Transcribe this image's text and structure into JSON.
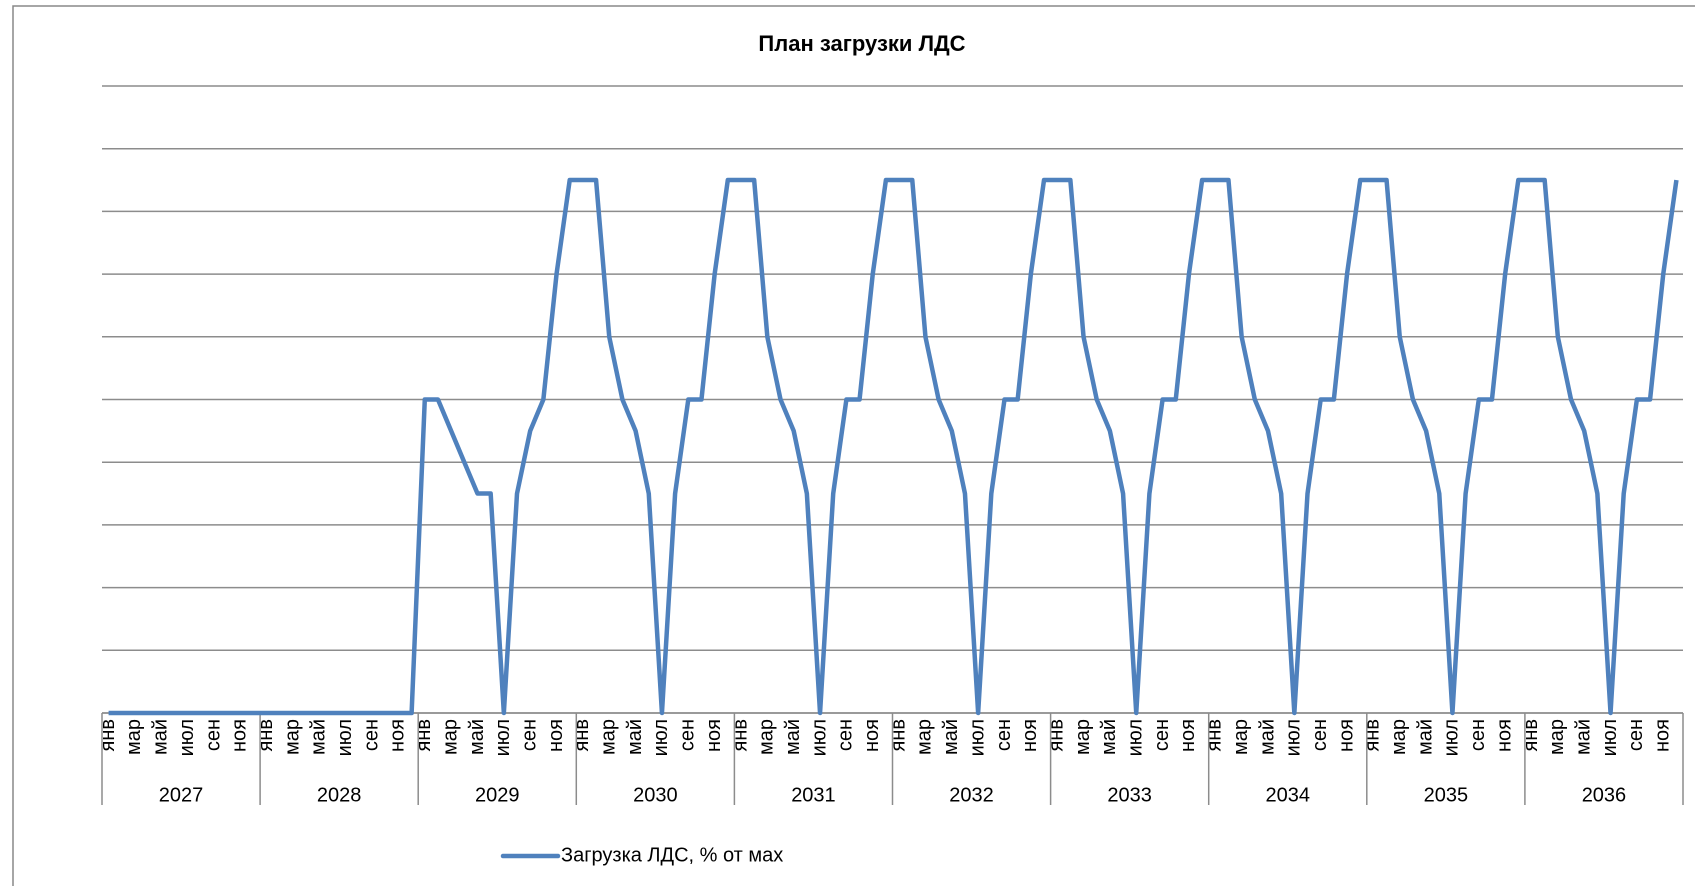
{
  "chart_data": {
    "type": "line",
    "title": "План загрузки ЛДС",
    "categories": [
      "янв",
      null,
      "мар",
      null,
      "май",
      null,
      "июл",
      null,
      "сен",
      null,
      "ноя",
      null,
      "янв",
      null,
      "мар",
      null,
      "май",
      null,
      "июл",
      null,
      "сен",
      null,
      "ноя",
      null,
      "янв",
      null,
      "мар",
      null,
      "май",
      null,
      "июл",
      null,
      "сен",
      null,
      "ноя",
      null,
      "янв",
      null,
      "мар",
      null,
      "май",
      null,
      "июл",
      null,
      "сен",
      null,
      "ноя",
      null,
      "янв",
      null,
      "мар",
      null,
      "май",
      null,
      "июл",
      null,
      "сен",
      null,
      "ноя",
      null,
      "янв",
      null,
      "мар",
      null,
      "май",
      null,
      "июл",
      null,
      "сен",
      null,
      "ноя",
      null,
      "янв",
      null,
      "мар",
      null,
      "май",
      null,
      "июл",
      null,
      "сен",
      null,
      "ноя",
      null,
      "янв",
      null,
      "мар",
      null,
      "май",
      null,
      "июл",
      null,
      "сен",
      null,
      "ноя",
      null,
      "янв",
      null,
      "мар",
      null,
      "май",
      null,
      "июл",
      null,
      "сен",
      null,
      "ноя",
      null,
      "янв",
      null,
      "мар",
      null,
      "май",
      null,
      "июл",
      null,
      "сен",
      null,
      "ноя",
      null
    ],
    "category_groups": [
      "2027",
      "2028",
      "2029",
      "2030",
      "2031",
      "2032",
      "2033",
      "2034",
      "2035",
      "2036"
    ],
    "series": [
      {
        "name": "Загрузка ЛДС, % от мах",
        "color": "#4f81bd",
        "values": [
          0,
          0,
          0,
          0,
          0,
          0,
          0,
          0,
          0,
          0,
          0,
          0,
          0,
          0,
          0,
          0,
          0,
          0,
          0,
          0,
          0,
          0,
          0,
          0,
          50,
          50,
          45,
          40,
          35,
          35,
          0,
          35,
          45,
          50,
          70,
          85,
          85,
          85,
          60,
          50,
          45,
          35,
          0,
          35,
          50,
          50,
          70,
          85,
          85,
          85,
          60,
          50,
          45,
          35,
          0,
          35,
          50,
          50,
          70,
          85,
          85,
          85,
          60,
          50,
          45,
          35,
          0,
          35,
          50,
          50,
          70,
          85,
          85,
          85,
          60,
          50,
          45,
          35,
          0,
          35,
          50,
          50,
          70,
          85,
          85,
          85,
          60,
          50,
          45,
          35,
          0,
          35,
          50,
          50,
          70,
          85,
          85,
          85,
          60,
          50,
          45,
          35,
          0,
          35,
          50,
          50,
          70,
          85,
          85,
          85,
          60,
          50,
          45,
          35,
          0,
          35,
          50,
          50,
          70,
          85
        ]
      }
    ],
    "ylim": [
      0,
      100
    ],
    "yticks": [
      0,
      10,
      20,
      30,
      40,
      50,
      60,
      70,
      80,
      90,
      100
    ],
    "grid": true,
    "legend": "bottom"
  }
}
